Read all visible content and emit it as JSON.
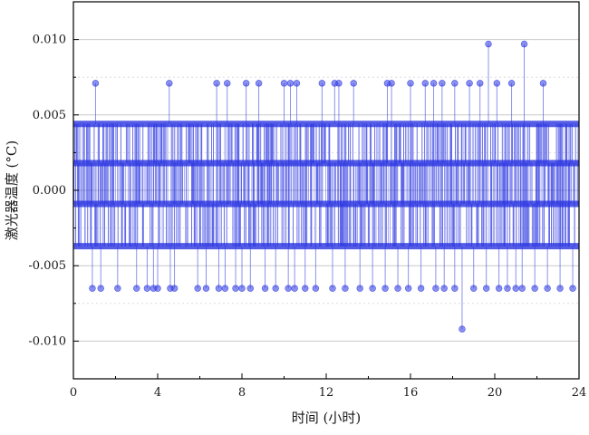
{
  "chart_data": {
    "type": "line",
    "title": "",
    "xlabel": "时间 (小时)",
    "ylabel": "激光器温度 (°C)",
    "xlim": [
      0,
      24
    ],
    "ylim": [
      -0.0125,
      0.0125
    ],
    "x_ticks": [
      0,
      4,
      8,
      12,
      16,
      20,
      24
    ],
    "x_tick_labels": [
      "0",
      "4",
      "8",
      "12",
      "16",
      "20",
      "24"
    ],
    "y_ticks": [
      -0.01,
      -0.005,
      0.0,
      0.005,
      0.01
    ],
    "y_tick_labels": [
      "-0.010",
      "-0.005",
      "0.000",
      "0.005",
      "0.010"
    ],
    "grid": {
      "major": "solid-gray",
      "minor": "dashed-gray"
    },
    "legend": "none",
    "quantized_levels": [
      -0.0092,
      -0.0065,
      -0.0037,
      -0.0009,
      0.0018,
      0.0044,
      0.0071,
      0.0097
    ],
    "series": [
      {
        "color": "#2a35e0",
        "marker": "circle",
        "dense_band_levels": [
          -0.0037,
          -0.0009,
          0.0018,
          0.0044
        ],
        "outliers": [
          {
            "x": 1.05,
            "y": 0.0071
          },
          {
            "x": 4.55,
            "y": 0.0071
          },
          {
            "x": 6.8,
            "y": 0.0071
          },
          {
            "x": 7.3,
            "y": 0.0071
          },
          {
            "x": 8.2,
            "y": 0.0071
          },
          {
            "x": 8.8,
            "y": 0.0071
          },
          {
            "x": 10.0,
            "y": 0.0071
          },
          {
            "x": 10.3,
            "y": 0.0071
          },
          {
            "x": 10.6,
            "y": 0.0071
          },
          {
            "x": 11.8,
            "y": 0.0071
          },
          {
            "x": 12.4,
            "y": 0.0071
          },
          {
            "x": 12.6,
            "y": 0.0071
          },
          {
            "x": 13.3,
            "y": 0.0071
          },
          {
            "x": 14.9,
            "y": 0.0071
          },
          {
            "x": 15.1,
            "y": 0.0071
          },
          {
            "x": 16.0,
            "y": 0.0071
          },
          {
            "x": 16.7,
            "y": 0.0071
          },
          {
            "x": 17.1,
            "y": 0.0071
          },
          {
            "x": 17.5,
            "y": 0.0071
          },
          {
            "x": 18.1,
            "y": 0.0071
          },
          {
            "x": 18.8,
            "y": 0.0071
          },
          {
            "x": 19.3,
            "y": 0.0071
          },
          {
            "x": 19.7,
            "y": 0.0097
          },
          {
            "x": 20.1,
            "y": 0.0071
          },
          {
            "x": 20.8,
            "y": 0.0071
          },
          {
            "x": 21.4,
            "y": 0.0097
          },
          {
            "x": 22.3,
            "y": 0.0071
          },
          {
            "x": 0.9,
            "y": -0.0065
          },
          {
            "x": 1.3,
            "y": -0.0065
          },
          {
            "x": 2.1,
            "y": -0.0065
          },
          {
            "x": 3.0,
            "y": -0.0065
          },
          {
            "x": 3.5,
            "y": -0.0065
          },
          {
            "x": 3.8,
            "y": -0.0065
          },
          {
            "x": 4.0,
            "y": -0.0065
          },
          {
            "x": 4.6,
            "y": -0.0065
          },
          {
            "x": 4.8,
            "y": -0.0065
          },
          {
            "x": 5.9,
            "y": -0.0065
          },
          {
            "x": 6.3,
            "y": -0.0065
          },
          {
            "x": 6.9,
            "y": -0.0065
          },
          {
            "x": 7.2,
            "y": -0.0065
          },
          {
            "x": 7.7,
            "y": -0.0065
          },
          {
            "x": 8.0,
            "y": -0.0065
          },
          {
            "x": 8.4,
            "y": -0.0065
          },
          {
            "x": 9.1,
            "y": -0.0065
          },
          {
            "x": 9.6,
            "y": -0.0065
          },
          {
            "x": 10.2,
            "y": -0.0065
          },
          {
            "x": 10.5,
            "y": -0.0065
          },
          {
            "x": 11.0,
            "y": -0.0065
          },
          {
            "x": 11.5,
            "y": -0.0065
          },
          {
            "x": 12.3,
            "y": -0.0065
          },
          {
            "x": 12.9,
            "y": -0.0065
          },
          {
            "x": 13.6,
            "y": -0.0065
          },
          {
            "x": 14.2,
            "y": -0.0065
          },
          {
            "x": 14.8,
            "y": -0.0065
          },
          {
            "x": 15.4,
            "y": -0.0065
          },
          {
            "x": 15.9,
            "y": -0.0065
          },
          {
            "x": 16.5,
            "y": -0.0065
          },
          {
            "x": 17.2,
            "y": -0.0065
          },
          {
            "x": 17.6,
            "y": -0.0065
          },
          {
            "x": 18.1,
            "y": -0.0065
          },
          {
            "x": 18.45,
            "y": -0.0092
          },
          {
            "x": 19.0,
            "y": -0.0065
          },
          {
            "x": 19.6,
            "y": -0.0065
          },
          {
            "x": 20.2,
            "y": -0.0065
          },
          {
            "x": 20.6,
            "y": -0.0065
          },
          {
            "x": 21.0,
            "y": -0.0065
          },
          {
            "x": 21.3,
            "y": -0.0065
          },
          {
            "x": 21.9,
            "y": -0.0065
          },
          {
            "x": 22.5,
            "y": -0.0065
          },
          {
            "x": 23.1,
            "y": -0.0065
          },
          {
            "x": 23.7,
            "y": -0.0065
          }
        ]
      }
    ]
  }
}
